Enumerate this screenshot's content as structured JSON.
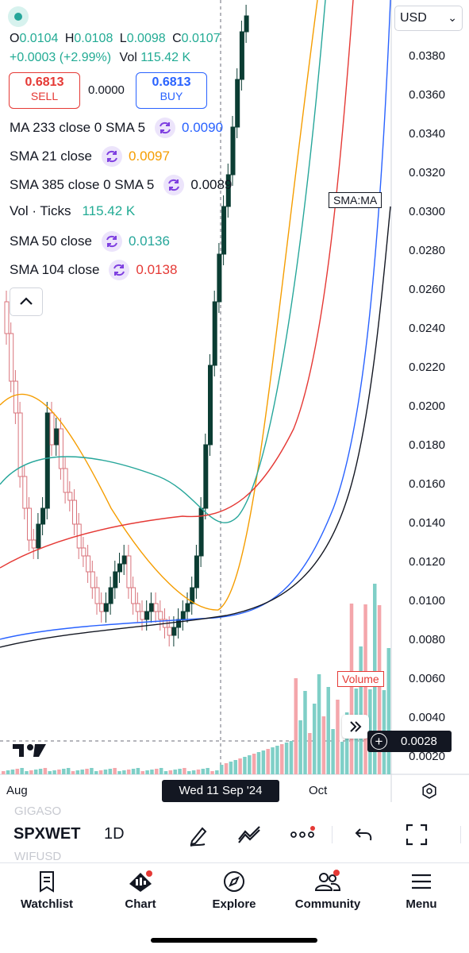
{
  "header": {
    "currency": "USD",
    "ohlc": {
      "o_label": "O",
      "o": "0.0104",
      "h_label": "H",
      "h": "0.0108",
      "l_label": "L",
      "l": "0.0098",
      "c_label": "C",
      "c": "0.0107"
    },
    "change": "+0.0003 (+2.99%)",
    "vol_label": "Vol",
    "vol": "115.42 K"
  },
  "trade": {
    "sell_price": "0.6813",
    "sell_label": "SELL",
    "spread": "0.0000",
    "buy_price": "0.6813",
    "buy_label": "BUY"
  },
  "indicators": [
    {
      "label": "MA 233 close 0 SMA 5",
      "value": "0.0090",
      "color": "#2962ff"
    },
    {
      "label": "SMA 21 close",
      "value": "0.0097",
      "color": "#f59d00"
    },
    {
      "label": "SMA 385 close 0 SMA 5",
      "value": "0.0089",
      "color": "#131722"
    },
    {
      "label": "Vol · Ticks",
      "value": "115.42 K",
      "color": "#22ab94"
    },
    {
      "label": "SMA 50 close",
      "value": "0.0136",
      "color": "#26a69a"
    },
    {
      "label": "SMA 104 close",
      "value": "0.0138",
      "color": "#e53935"
    }
  ],
  "price_axis": [
    "0.0380",
    "0.0360",
    "0.0340",
    "0.0320",
    "0.0300",
    "0.0280",
    "0.0260",
    "0.0240",
    "0.0220",
    "0.0200",
    "0.0180",
    "0.0160",
    "0.0140",
    "0.0120",
    "0.0100",
    "0.0080",
    "0.0060",
    "0.0040",
    "0.0020"
  ],
  "overlay_tags": {
    "sma_ma": "SMA:MA",
    "volume": "Volume",
    "crosshair_price": "0.0028",
    "crosshair_date": "Wed 11 Sep '24"
  },
  "time_axis": {
    "aug": "Aug",
    "oct": "Oct"
  },
  "toolbar": {
    "symbol": "SPXWET",
    "interval": "1D",
    "ghost_top": "GIGASO",
    "ghost_bottom": "WIFUSD"
  },
  "tabs": [
    {
      "label": "Watchlist",
      "icon": "watchlist-icon"
    },
    {
      "label": "Chart",
      "icon": "chart-icon"
    },
    {
      "label": "Explore",
      "icon": "compass-icon"
    },
    {
      "label": "Community",
      "icon": "community-icon"
    },
    {
      "label": "Menu",
      "icon": "menu-icon"
    }
  ],
  "colors": {
    "up": "#0b3d33",
    "down": "#f28b92",
    "volume_up": "#7fcfc7",
    "volume_down": "#f4a6ab",
    "sell": "#e53935",
    "buy": "#2962ff"
  }
}
